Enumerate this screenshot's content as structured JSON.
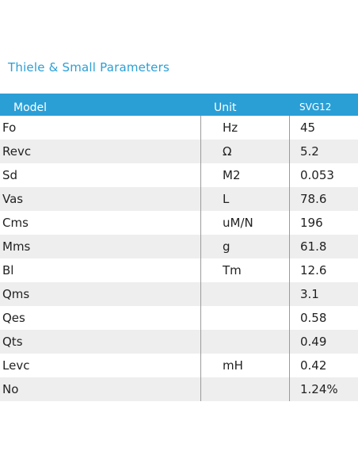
{
  "title": "Thiele & Small Parameters",
  "header": {
    "model": "Model",
    "unit": "Unit",
    "value": "SVG12"
  },
  "rows": [
    {
      "model": "Fo",
      "unit": "Hz",
      "value": "45"
    },
    {
      "model": "Revc",
      "unit": "Ω",
      "value": "5.2"
    },
    {
      "model": "Sd",
      "unit": "M2",
      "value": "0.053"
    },
    {
      "model": "Vas",
      "unit": "L",
      "value": "78.6"
    },
    {
      "model": "Cms",
      "unit": "uM/N",
      "value": "196"
    },
    {
      "model": "Mms",
      "unit": "g",
      "value": "61.8"
    },
    {
      "model": "Bl",
      "unit": "Tm",
      "value": "12.6"
    },
    {
      "model": "Qms",
      "unit": "",
      "value": "3.1"
    },
    {
      "model": "Qes",
      "unit": "",
      "value": "0.58"
    },
    {
      "model": "Qts",
      "unit": "",
      "value": "0.49"
    },
    {
      "model": "Levc",
      "unit": "mH",
      "value": "0.42"
    },
    {
      "model": "No",
      "unit": "",
      "value": "1.24%"
    }
  ]
}
